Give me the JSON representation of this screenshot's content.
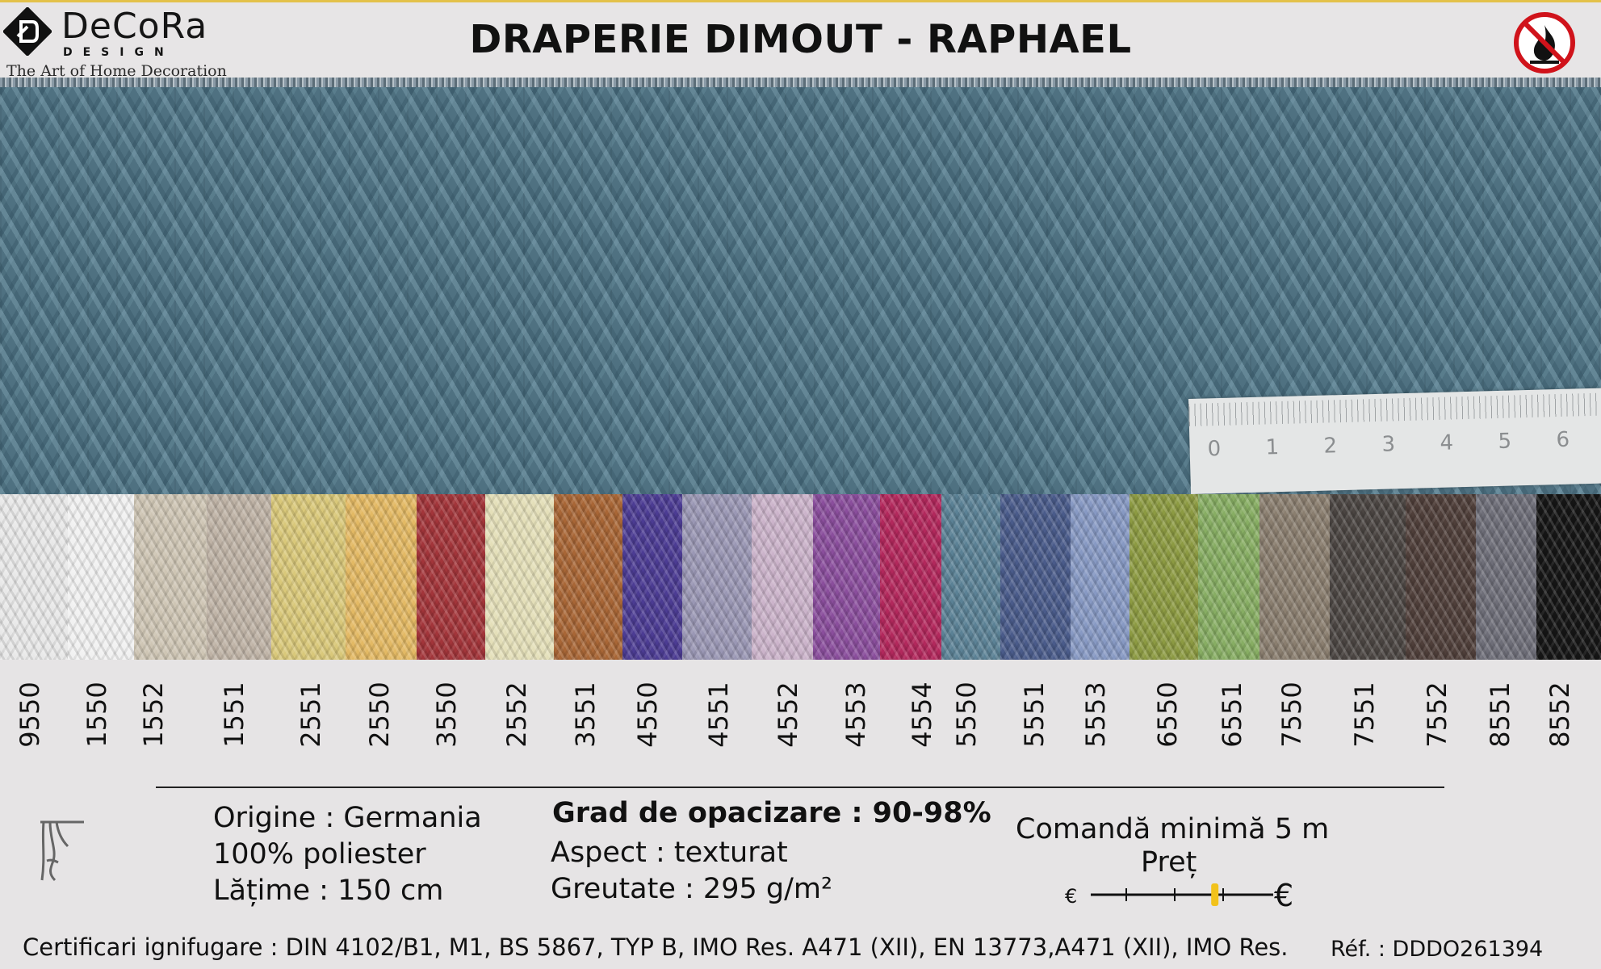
{
  "header": {
    "brand": "DeCoRa",
    "brand_sub": "DESIGN",
    "tagline": "The Art of Home Decoration",
    "title": "DRAPERIE DIMOUT - RAPHAEL",
    "fire_icon": "no-fire-icon"
  },
  "ruler": {
    "numbers": [
      "0",
      "1",
      "2",
      "3",
      "4",
      "5",
      "6"
    ]
  },
  "swatches": [
    {
      "code": "9550",
      "color": "#e8e8e8"
    },
    {
      "code": "1550",
      "color": "#f1f1f1"
    },
    {
      "code": "1552",
      "color": "#cec5b4"
    },
    {
      "code": "1551",
      "color": "#bfb3a6"
    },
    {
      "code": "2551",
      "color": "#d9c87a"
    },
    {
      "code": "2550",
      "color": "#e3b964"
    },
    {
      "code": "3550",
      "color": "#a2353a"
    },
    {
      "code": "2552",
      "color": "#e4dfb9"
    },
    {
      "code": "3551",
      "color": "#a86636"
    },
    {
      "code": "4550",
      "color": "#4c3c93"
    },
    {
      "code": "4551",
      "color": "#9a97b4"
    },
    {
      "code": "4552",
      "color": "#cbb3ca"
    },
    {
      "code": "4553",
      "color": "#8a4e9c"
    },
    {
      "code": "4554",
      "color": "#b2285c"
    },
    {
      "code": "5550",
      "color": "#5b8195"
    },
    {
      "code": "5551",
      "color": "#4a5b8a"
    },
    {
      "code": "5553",
      "color": "#8799c3"
    },
    {
      "code": "6550",
      "color": "#8c9a42"
    },
    {
      "code": "6551",
      "color": "#87ad63"
    },
    {
      "code": "7550",
      "color": "#8a7e6f"
    },
    {
      "code": "7551",
      "color": "#4b4542"
    },
    {
      "code": "7552",
      "color": "#4f3f3a"
    },
    {
      "code": "8551",
      "color": "#6e6e78"
    },
    {
      "code": "8552",
      "color": "#151515"
    }
  ],
  "specs": {
    "origin": "Origine : Germania",
    "composition": "100% poliester",
    "width": "Lățime : 150 cm",
    "opacity": "Grad de opacizare : 90-98%",
    "aspect": "Aspect : texturat",
    "weight": "Greutate : 295 g/m²",
    "min_order": "Comandă minimă 5 m",
    "price_label": "Preț",
    "price_low": "€",
    "price_high": "€",
    "price_level": 0.68,
    "accent_color": "#f2c21b"
  },
  "footer": {
    "certifications": "Certificari ignifugare : DIN 4102/B1, M1, BS 5867, TYP B, IMO Res. A471 (XII), EN 13773,A471 (XII), IMO Res.",
    "reference": "Réf. : DDDO261394"
  }
}
